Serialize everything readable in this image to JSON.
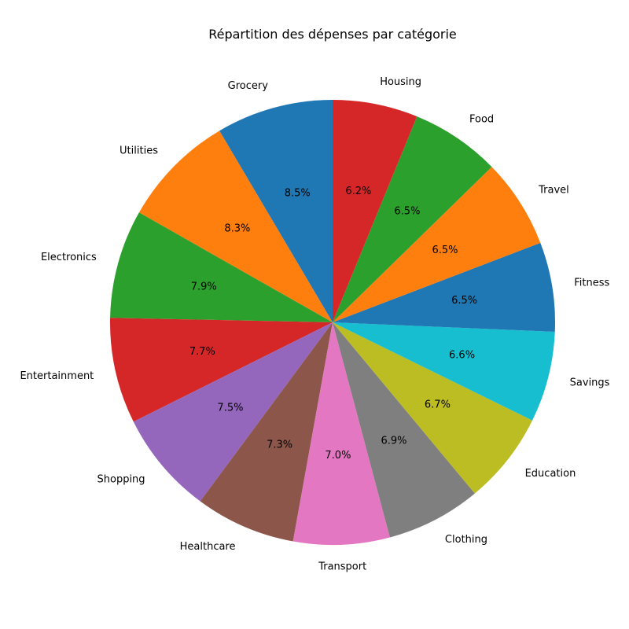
{
  "chart_data": {
    "type": "pie",
    "title": "Répartition des dépenses par catégorie",
    "start_angle_deg": 90,
    "direction": "counterclockwise",
    "slices": [
      {
        "label": "Grocery",
        "value": 8.5,
        "pct_label": "8.5%",
        "color": "#1f77b4"
      },
      {
        "label": "Utilities",
        "value": 8.3,
        "pct_label": "8.3%",
        "color": "#ff7f0e"
      },
      {
        "label": "Electronics",
        "value": 7.9,
        "pct_label": "7.9%",
        "color": "#2ca02c"
      },
      {
        "label": "Entertainment",
        "value": 7.7,
        "pct_label": "7.7%",
        "color": "#d62728"
      },
      {
        "label": "Shopping",
        "value": 7.5,
        "pct_label": "7.5%",
        "color": "#9467bd"
      },
      {
        "label": "Healthcare",
        "value": 7.3,
        "pct_label": "7.3%",
        "color": "#8c564b"
      },
      {
        "label": "Transport",
        "value": 7.0,
        "pct_label": "7.0%",
        "color": "#e377c2"
      },
      {
        "label": "Clothing",
        "value": 6.9,
        "pct_label": "6.9%",
        "color": "#7f7f7f"
      },
      {
        "label": "Education",
        "value": 6.7,
        "pct_label": "6.7%",
        "color": "#bcbd22"
      },
      {
        "label": "Savings",
        "value": 6.6,
        "pct_label": "6.6%",
        "color": "#17becf"
      },
      {
        "label": "Fitness",
        "value": 6.5,
        "pct_label": "6.5%",
        "color": "#1f77b4"
      },
      {
        "label": "Travel",
        "value": 6.5,
        "pct_label": "6.5%",
        "color": "#ff7f0e"
      },
      {
        "label": "Food",
        "value": 6.5,
        "pct_label": "6.5%",
        "color": "#2ca02c"
      },
      {
        "label": "Housing",
        "value": 6.2,
        "pct_label": "6.2%",
        "color": "#d62728"
      }
    ]
  }
}
